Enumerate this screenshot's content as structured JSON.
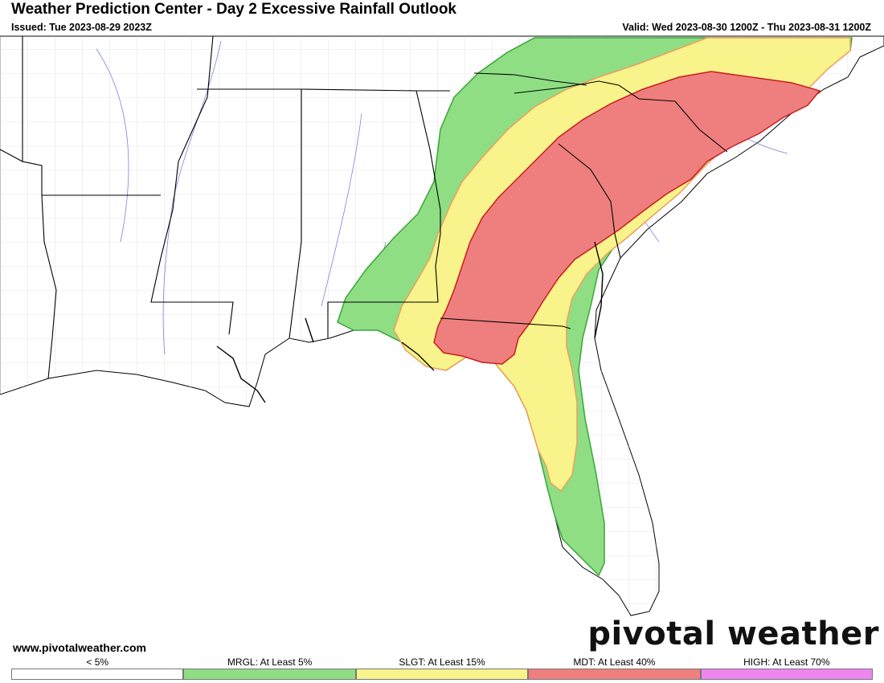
{
  "header": {
    "title": "Weather Prediction Center - Day 2 Excessive Rainfall Outlook",
    "issued": "Issued: Tue 2023-08-29 2023Z",
    "valid": "Valid: Wed 2023-08-30 1200Z - Thu 2023-08-31 1200Z"
  },
  "footer": {
    "site_url": "www.pivotalweather.com",
    "brand": "pivotal weather"
  },
  "legend": [
    {
      "label": "< 5%",
      "color": "#ffffff"
    },
    {
      "label": "MRGL: At Least 5%",
      "color": "#8fde84"
    },
    {
      "label": "SLGT: At Least 15%",
      "color": "#f8f38a"
    },
    {
      "label": "MDT: At Least 40%",
      "color": "#ef7f7f"
    },
    {
      "label": "HIGH: At Least 70%",
      "color": "#ed86ee"
    }
  ],
  "risk_colors": {
    "mrgl_fill": "#8fde84",
    "mrgl_line": "#3aa63a",
    "slgt_fill": "#f8f38a",
    "slgt_line": "#e8a060",
    "mdt_fill": "#ef7f7f",
    "mdt_line": "#c81e1e"
  }
}
